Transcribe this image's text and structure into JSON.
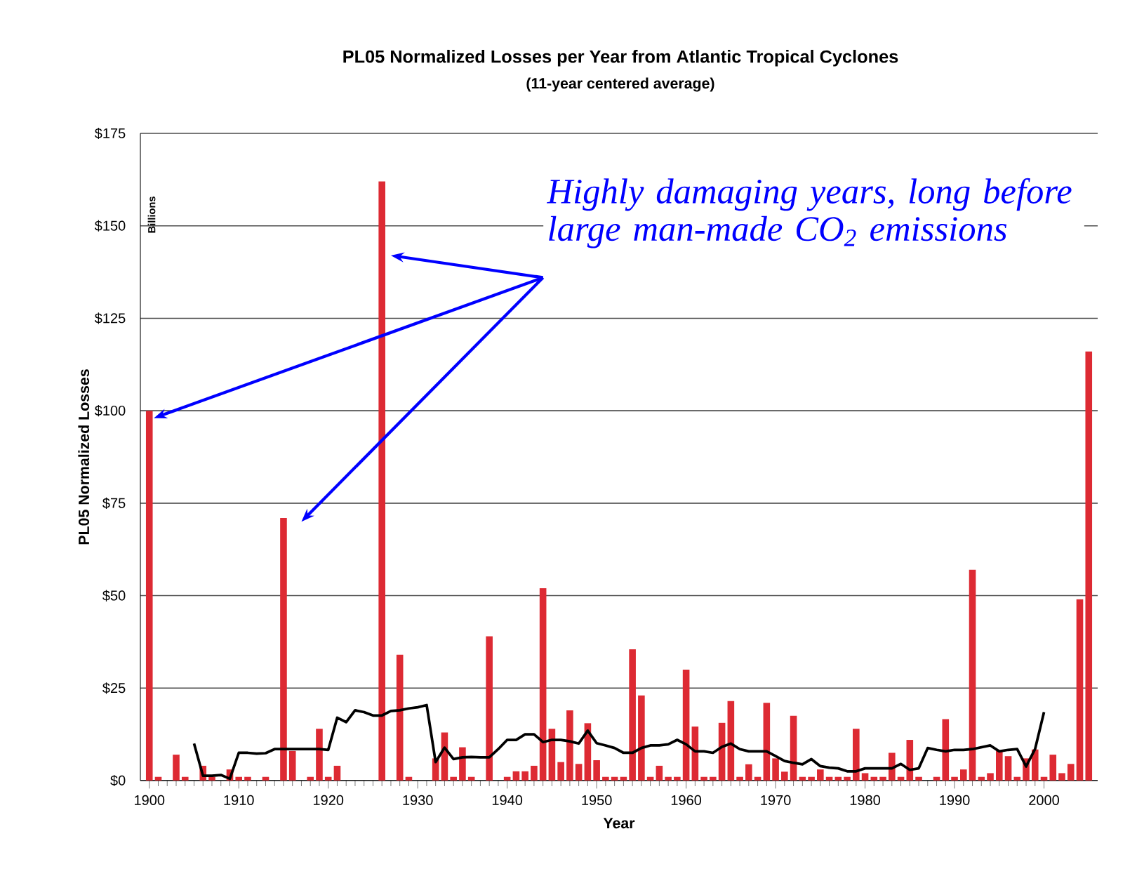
{
  "chart_data": {
    "type": "bar",
    "title": "PL05 Normalized Losses per Year from Atlantic Tropical Cyclones",
    "subtitle": "(11-year centered average)",
    "xlabel": "Year",
    "ylabel": "PL05 Normalized Losses",
    "annotations": [
      "Billions",
      "Highly damaging years, long before large man-made CO$_{2}$ emissions"
    ],
    "x": [
      1900,
      1901,
      1902,
      1903,
      1904,
      1905,
      1906,
      1907,
      1908,
      1909,
      1910,
      1911,
      1912,
      1913,
      1914,
      1915,
      1916,
      1917,
      1918,
      1919,
      1920,
      1921,
      1922,
      1923,
      1924,
      1925,
      1926,
      1927,
      1928,
      1929,
      1930,
      1931,
      1932,
      1933,
      1934,
      1935,
      1936,
      1937,
      1938,
      1939,
      1940,
      1941,
      1942,
      1943,
      1944,
      1945,
      1946,
      1947,
      1948,
      1949,
      1950,
      1951,
      1952,
      1953,
      1954,
      1955,
      1956,
      1957,
      1958,
      1959,
      1960,
      1961,
      1962,
      1963,
      1964,
      1965,
      1966,
      1967,
      1968,
      1969,
      1970,
      1971,
      1972,
      1973,
      1974,
      1975,
      1976,
      1977,
      1978,
      1979,
      1980,
      1981,
      1982,
      1983,
      1984,
      1985,
      1986,
      1987,
      1988,
      1989,
      1990,
      1991,
      1992,
      1993,
      1994,
      1995,
      1996,
      1997,
      1998,
      1999,
      2000,
      2001,
      2002,
      2003,
      2004,
      2005
    ],
    "series": [
      {
        "color": "#dd2a33",
        "values": [
          100,
          1,
          null,
          7,
          1,
          null,
          4,
          1,
          null,
          3,
          1,
          1,
          null,
          1,
          null,
          71,
          8,
          null,
          1,
          14,
          1,
          4,
          null,
          null,
          null,
          null,
          162,
          null,
          34,
          1,
          null,
          null,
          6,
          13,
          1,
          9,
          1,
          null,
          39,
          null,
          1,
          2.5,
          2.5,
          4,
          52,
          14,
          5,
          19,
          4.5,
          15.5,
          5.5,
          1,
          1,
          1,
          35.5,
          23,
          1,
          4,
          1,
          1,
          30,
          14.6,
          1,
          1,
          15.6,
          21.5,
          1,
          4.4,
          1,
          21,
          6,
          2.4,
          17.5,
          1,
          1,
          3,
          1,
          1,
          1,
          14,
          2,
          1,
          1,
          7.5,
          1,
          11,
          1,
          null,
          1,
          16.6,
          1,
          3,
          57,
          1,
          2,
          8,
          6.6,
          1,
          6,
          8.4,
          1,
          7,
          2,
          4.5,
          49,
          116
        ]
      },
      {
        "type": "line",
        "color": "#000000",
        "x": [
          1905,
          1906,
          1907,
          1908,
          1909,
          1910,
          1911,
          1912,
          1913,
          1914,
          1915,
          1916,
          1917,
          1918,
          1919,
          1920,
          1921,
          1922,
          1923,
          1924,
          1925,
          1926,
          1927,
          1928,
          1929,
          1930,
          1931,
          1932,
          1933,
          1934,
          1935,
          1936,
          1937,
          1938,
          1939,
          1940,
          1941,
          1942,
          1943,
          1944,
          1945,
          1946,
          1947,
          1948,
          1949,
          1950,
          1951,
          1952,
          1953,
          1954,
          1955,
          1956,
          1957,
          1958,
          1959,
          1960,
          1961,
          1962,
          1963,
          1964,
          1965,
          1966,
          1967,
          1968,
          1969,
          1970,
          1971,
          1972,
          1973,
          1974,
          1975,
          1976,
          1977,
          1978,
          1979,
          1980,
          1981,
          1982,
          1983,
          1984,
          1985,
          1986,
          1987,
          1988,
          1989,
          1990,
          1991,
          1992,
          1993,
          1994,
          1995,
          1996,
          1997,
          1998,
          1999,
          2000
        ],
        "values": [
          10,
          1.3,
          1.3,
          1.5,
          0.5,
          7.5,
          7.5,
          7.3,
          7.4,
          8.5,
          8.5,
          8.5,
          8.5,
          8.5,
          8.5,
          8.3,
          17,
          15.8,
          19,
          18.5,
          17.6,
          17.6,
          18.8,
          19,
          19.5,
          19.8,
          20.4,
          5,
          8.9,
          5.8,
          6.3,
          6.4,
          6.3,
          6.3,
          8.5,
          11,
          11,
          12.5,
          12.5,
          10.4,
          11,
          11,
          10.6,
          10,
          13.5,
          10.1,
          9.5,
          8.8,
          7.5,
          7.5,
          8.8,
          9.5,
          9.5,
          9.8,
          11,
          9.8,
          7.9,
          7.9,
          7.5,
          9.1,
          10,
          8.5,
          7.9,
          7.9,
          7.9,
          6.6,
          5.3,
          4.8,
          4.4,
          5.8,
          3.9,
          3.5,
          3.3,
          2.5,
          2.5,
          3.3,
          3.3,
          3.3,
          3.3,
          4.5,
          2.9,
          3.3,
          8.8,
          8.3,
          7.9,
          8.3,
          8.3,
          8.5,
          9,
          9.5,
          7.9,
          8.3,
          8.5,
          3.8,
          8.5,
          18.5
        ]
      }
    ],
    "xlim": [
      1899,
      2006
    ],
    "ylim": [
      0,
      175
    ],
    "xticks": [
      1900,
      1910,
      1920,
      1930,
      1940,
      1950,
      1960,
      1970,
      1980,
      1990,
      2000
    ],
    "yticks": [
      {
        "value": 0,
        "label": "$0"
      },
      {
        "value": 25,
        "label": "$25"
      },
      {
        "value": 50,
        "label": "$50"
      },
      {
        "value": 75,
        "label": "$75"
      },
      {
        "value": 100,
        "label": "$100"
      },
      {
        "value": 125,
        "label": "$125"
      },
      {
        "value": 150,
        "label": "$150"
      },
      {
        "value": 175,
        "label": "$175"
      }
    ],
    "grid": "y"
  }
}
